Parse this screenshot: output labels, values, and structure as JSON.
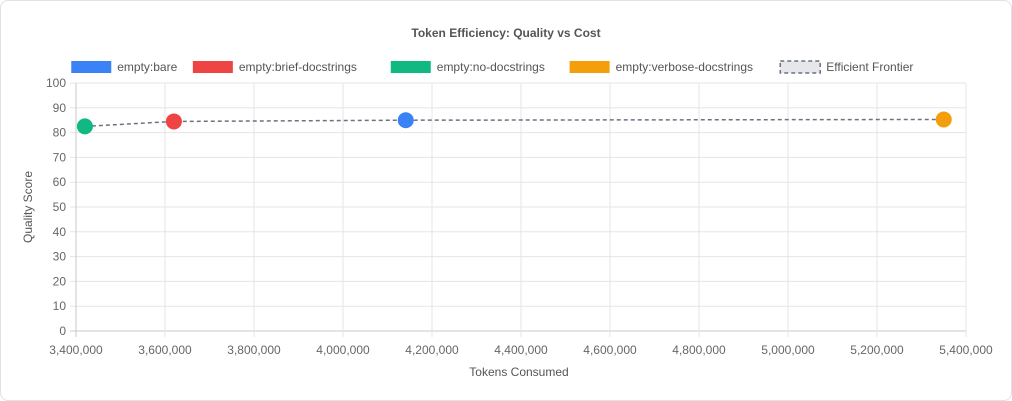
{
  "chart_data": {
    "type": "scatter",
    "title": "Token Efficiency: Quality vs Cost",
    "xlabel": "Tokens Consumed",
    "ylabel": "Quality Score",
    "xlim": [
      3400000,
      5400000
    ],
    "ylim": [
      0,
      100
    ],
    "x_ticks": [
      "3,400,000",
      "3,600,000",
      "3,800,000",
      "4,000,000",
      "4,200,000",
      "4,400,000",
      "4,600,000",
      "4,800,000",
      "5,000,000",
      "5,200,000",
      "5,400,000"
    ],
    "y_ticks": [
      "0",
      "10",
      "20",
      "30",
      "40",
      "50",
      "60",
      "70",
      "80",
      "90",
      "100"
    ],
    "grid": true,
    "legend_position": "top",
    "series": [
      {
        "name": "empty:bare",
        "color": "#3b82f6",
        "points": [
          {
            "x": 4141000,
            "y": 85
          }
        ]
      },
      {
        "name": "empty:brief-docstrings",
        "color": "#ef4444",
        "points": [
          {
            "x": 3620000,
            "y": 84.5
          }
        ]
      },
      {
        "name": "empty:no-docstrings",
        "color": "#10b981",
        "points": [
          {
            "x": 3420000,
            "y": 82.5
          }
        ]
      },
      {
        "name": "empty:verbose-docstrings",
        "color": "#f59e0b",
        "points": [
          {
            "x": 5350000,
            "y": 85.3
          }
        ]
      }
    ],
    "frontier": {
      "name": "Efficient Frontier",
      "color": "#6b7280",
      "style": "dashed",
      "points": [
        {
          "x": 3420000,
          "y": 82.5
        },
        {
          "x": 3620000,
          "y": 84.5
        },
        {
          "x": 4141000,
          "y": 85
        },
        {
          "x": 5350000,
          "y": 85.3
        }
      ]
    }
  }
}
